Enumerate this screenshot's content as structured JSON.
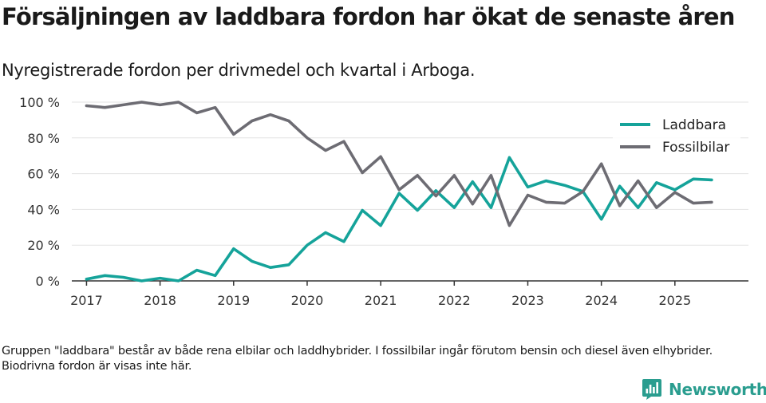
{
  "title": "Försäljningen av laddbara fordon har ökat de senaste åren",
  "subtitle": "Nyregistrerade fordon per drivmedel och kvartal i Arboga.",
  "footnote": "Gruppen \"laddbara\" består av både rena elbilar och laddhybrider. I fossilbilar ingår förutom bensin och diesel även elhybrider. Biodrivna fordon är visas inte här.",
  "brand": {
    "name": "Newsworthy",
    "color": "#2a9d8f"
  },
  "chart_data": {
    "type": "line",
    "title": "Försäljningen av laddbara fordon har ökat de senaste åren",
    "xlabel": "",
    "ylabel": "",
    "ylim": [
      0,
      100
    ],
    "xlim": [
      2016.8,
      2026.0
    ],
    "y_ticks": [
      0,
      20,
      40,
      60,
      80,
      100
    ],
    "y_tick_labels": [
      "0 %",
      "20 %",
      "40 %",
      "60 %",
      "80 %",
      "100 %"
    ],
    "x_ticks": [
      2017,
      2018,
      2019,
      2020,
      2021,
      2022,
      2023,
      2024,
      2025
    ],
    "x_tick_labels": [
      "2017",
      "2018",
      "2019",
      "2020",
      "2021",
      "2022",
      "2023",
      "2024",
      "2025"
    ],
    "grid": true,
    "legend_position": "top-right",
    "x": [
      2017.0,
      2017.25,
      2017.5,
      2017.75,
      2018.0,
      2018.25,
      2018.5,
      2018.75,
      2019.0,
      2019.25,
      2019.5,
      2019.75,
      2020.0,
      2020.25,
      2020.5,
      2020.75,
      2021.0,
      2021.25,
      2021.5,
      2021.75,
      2022.0,
      2022.25,
      2022.5,
      2022.75,
      2023.0,
      2023.25,
      2023.5,
      2023.75,
      2024.0,
      2024.25,
      2024.5,
      2024.75,
      2025.0,
      2025.25,
      2025.5
    ],
    "series": [
      {
        "name": "Laddbara",
        "color": "#15a39a",
        "values": [
          1,
          3,
          2,
          0,
          1.5,
          0,
          6,
          3,
          18,
          11,
          7.5,
          9,
          20,
          27,
          22,
          39.5,
          31,
          49,
          39.5,
          50.5,
          41,
          55.5,
          41,
          69,
          52.5,
          56,
          53.5,
          50,
          34.5,
          53,
          41,
          55,
          51,
          57,
          56.5
        ]
      },
      {
        "name": "Fossilbilar",
        "color": "#6d6c73",
        "values": [
          98,
          97,
          98.5,
          100,
          98.5,
          100,
          94,
          97,
          82,
          89.5,
          93,
          89.5,
          80,
          73,
          78,
          60.5,
          69.5,
          51,
          59,
          47.5,
          59,
          43,
          59,
          31,
          48,
          44,
          43.5,
          50,
          65.5,
          42,
          56,
          41,
          49.5,
          43.5,
          44
        ]
      }
    ]
  }
}
